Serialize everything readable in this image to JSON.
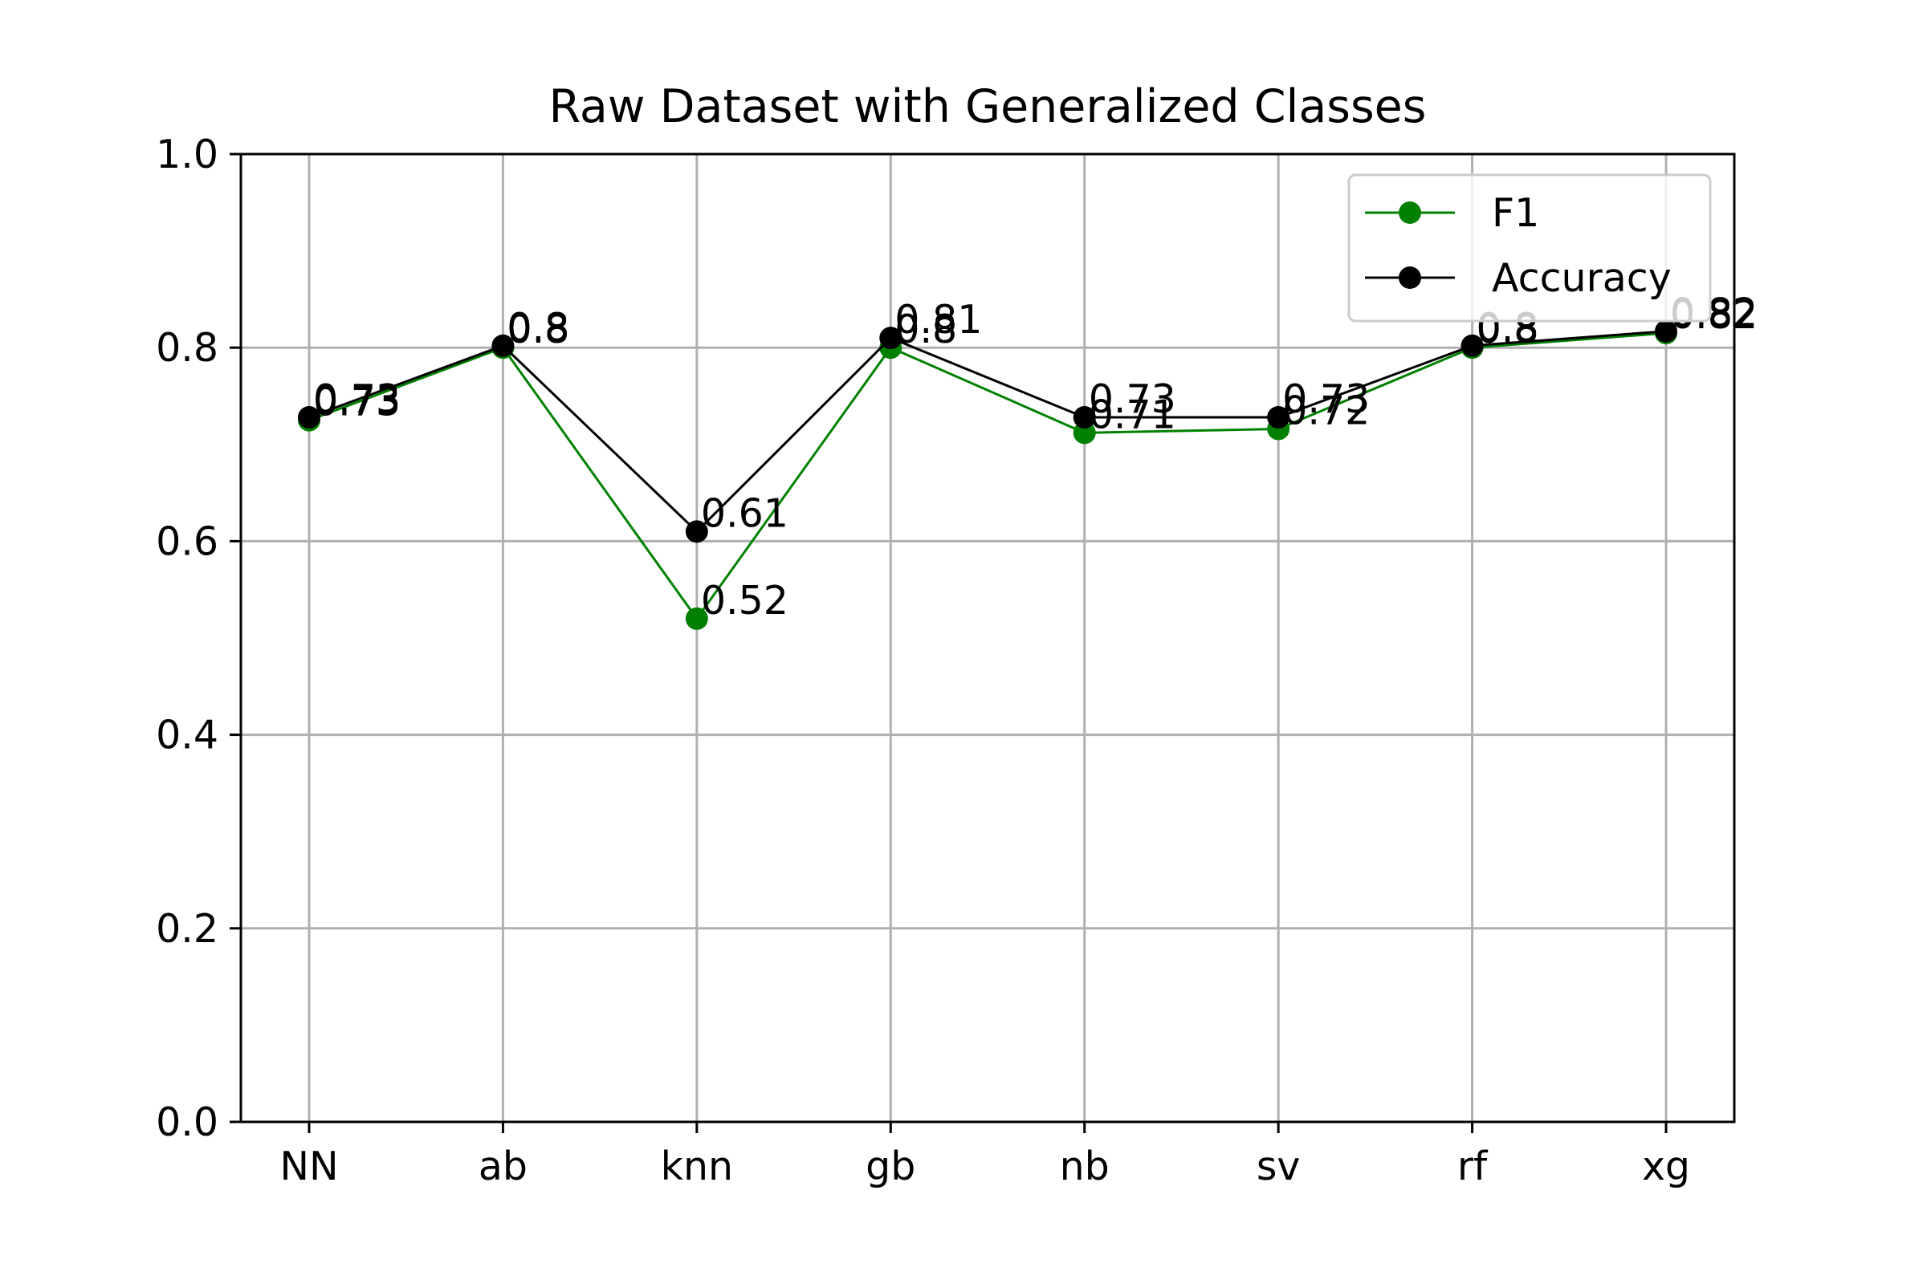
{
  "chart_data": {
    "type": "line",
    "title": "Raw Dataset with Generalized Classes",
    "xlabel": "",
    "ylabel": "",
    "categories": [
      "NN",
      "ab",
      "knn",
      "gb",
      "nb",
      "sv",
      "rf",
      "xg"
    ],
    "ylim": [
      0.0,
      1.0
    ],
    "yticks": [
      0.0,
      0.2,
      0.4,
      0.6,
      0.8,
      1.0
    ],
    "ytick_labels": [
      "0.0",
      "0.2",
      "0.4",
      "0.6",
      "0.8",
      "1.0"
    ],
    "grid": true,
    "legend_position": "top-right",
    "series": [
      {
        "name": "F1",
        "color": "#008000",
        "marker": "circle",
        "values": [
          0.725,
          0.8,
          0.52,
          0.8,
          0.712,
          0.716,
          0.8,
          0.815
        ],
        "data_labels": [
          "0.73",
          "0.8",
          "0.52",
          "0.8",
          "0.71",
          "0.72",
          "0.8",
          "0.82"
        ]
      },
      {
        "name": "Accuracy",
        "color": "#000000",
        "marker": "circle",
        "values": [
          0.728,
          0.802,
          0.61,
          0.81,
          0.728,
          0.728,
          0.802,
          0.817
        ],
        "data_labels": [
          "0.73",
          "0.8",
          "0.61",
          "0.81",
          "0.73",
          "0.73",
          "0.8",
          "0.82"
        ]
      }
    ]
  }
}
